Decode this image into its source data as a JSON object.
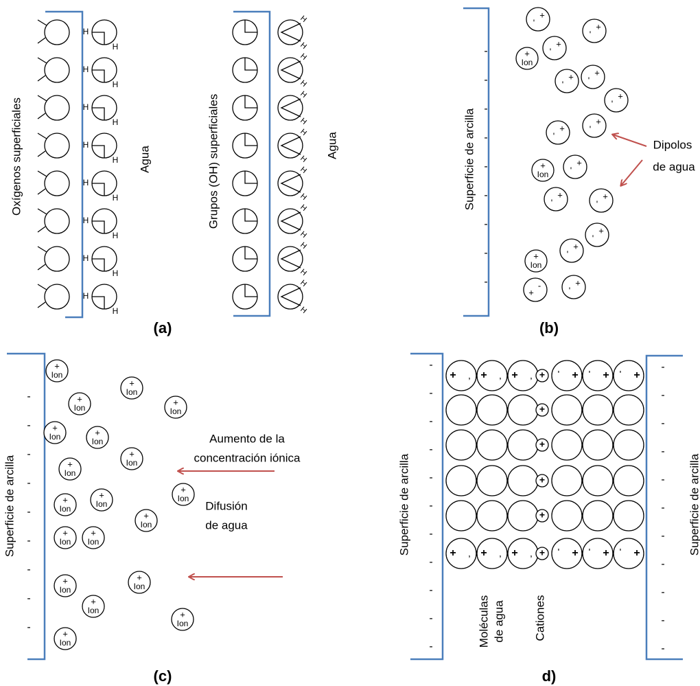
{
  "panel_a": {
    "label": "(a)",
    "left": {
      "surface_label": "Oxígenos superficiales",
      "water_label": "Agua",
      "hydrogens": [
        "H",
        "H",
        "H",
        "H",
        "H",
        "H",
        "H",
        "H",
        "H",
        "H",
        "H",
        "H",
        "H",
        "H",
        "H",
        "H"
      ]
    },
    "right": {
      "surface_label": "Grupos (OH) superficiales",
      "water_label": "Agua",
      "hydrogens": [
        "H",
        "H",
        "H",
        "H",
        "H",
        "H",
        "H",
        "H",
        "H",
        "H",
        "H",
        "H",
        "H",
        "H",
        "H",
        "H"
      ]
    }
  },
  "panel_b": {
    "label": "(b)",
    "surface_label": "Superficie de arcilla",
    "surface_charges": [
      "-",
      "-",
      "-",
      "-",
      "-",
      "-",
      "-",
      "-",
      "-"
    ],
    "dipoles": [
      {
        "plus": "+",
        "minus": "'"
      },
      {
        "plus": "+",
        "minus": "'"
      },
      {
        "plus": "+",
        "minus": "'"
      },
      {
        "plus": "+",
        "minus": "'"
      },
      {
        "plus": "+",
        "minus": "'"
      },
      {
        "plus": "+",
        "minus": "'"
      },
      {
        "plus": "+",
        "minus": "'"
      },
      {
        "plus": "+",
        "minus": "'"
      },
      {
        "plus": "+",
        "minus": "'"
      },
      {
        "plus": "+",
        "minus": "'"
      },
      {
        "plus": "+",
        "minus": "'"
      },
      {
        "plus": "+",
        "minus": "'"
      },
      {
        "plus": "+",
        "minus": "'"
      },
      {
        "plus": "+",
        "minus": "'"
      },
      {
        "plus": "+",
        "minus": "-"
      }
    ],
    "ions": [
      {
        "sign": "+",
        "label": "Ion"
      },
      {
        "sign": "+",
        "label": "Ion"
      },
      {
        "sign": "+",
        "label": "Ion"
      }
    ],
    "annotation": [
      "Dipolos",
      "de agua"
    ]
  },
  "panel_c": {
    "label": "(c)",
    "surface_label": "Superficie de arcilla",
    "surface_charges": [
      "-",
      "-",
      "-",
      "-",
      "-",
      "-",
      "-",
      "-",
      "-"
    ],
    "ions": [
      {
        "sign": "+",
        "label": "Ion"
      },
      {
        "sign": "+",
        "label": "Ion"
      },
      {
        "sign": "+",
        "label": "Ion"
      },
      {
        "sign": "+",
        "label": "Ion"
      },
      {
        "sign": "+",
        "label": "Ion"
      },
      {
        "sign": "+",
        "label": "Ion"
      },
      {
        "sign": "+",
        "label": "Ion"
      },
      {
        "sign": "+",
        "label": "Ion"
      },
      {
        "sign": "+",
        "label": "Ion"
      },
      {
        "sign": "+",
        "label": "Ion"
      },
      {
        "sign": "+",
        "label": "Ion"
      },
      {
        "sign": "+",
        "label": "Ion"
      },
      {
        "sign": "+",
        "label": "Ion"
      },
      {
        "sign": "+",
        "label": "Ion"
      },
      {
        "sign": "+",
        "label": "Ion"
      },
      {
        "sign": "+",
        "label": "Ion"
      },
      {
        "sign": "+",
        "label": "Ion"
      },
      {
        "sign": "+",
        "label": "Ion"
      },
      {
        "sign": "+",
        "label": "Ion"
      }
    ],
    "annotations": [
      [
        "Aumento de la",
        "concentración iónica"
      ],
      [
        "Difusión",
        "de agua"
      ]
    ]
  },
  "panel_d": {
    "label": "d)",
    "left_surface_label": "Superficie de arcilla",
    "right_surface_label": "Superficie de arcilla",
    "left_charges": [
      "-",
      "-",
      "-",
      "-",
      "-",
      "-",
      "-",
      "-",
      "-",
      "-",
      "-"
    ],
    "right_charges": [
      "-",
      "-",
      "-",
      "-",
      "-",
      "-",
      "-",
      "-",
      "-",
      "-",
      "-"
    ],
    "cations": [
      "+",
      "+",
      "+",
      "+",
      "+",
      "+"
    ],
    "top_dipoles": [
      {
        "plus": "+",
        "minus": ","
      },
      {
        "plus": "+",
        "minus": ","
      },
      {
        "plus": "+",
        "minus": ","
      },
      {
        "plus": "+",
        "minus": "'"
      },
      {
        "plus": "+",
        "minus": "'"
      },
      {
        "plus": "+",
        "minus": "'"
      }
    ],
    "bottom_dipoles": [
      {
        "plus": "+",
        "minus": ","
      },
      {
        "plus": "+",
        "minus": ","
      },
      {
        "plus": "+",
        "minus": ","
      },
      {
        "plus": "+",
        "minus": "'"
      },
      {
        "plus": "+",
        "minus": "'"
      },
      {
        "plus": "+",
        "minus": "'"
      }
    ],
    "water_label": [
      "Moléculas",
      "de agua"
    ],
    "cation_label": "Cationes"
  }
}
